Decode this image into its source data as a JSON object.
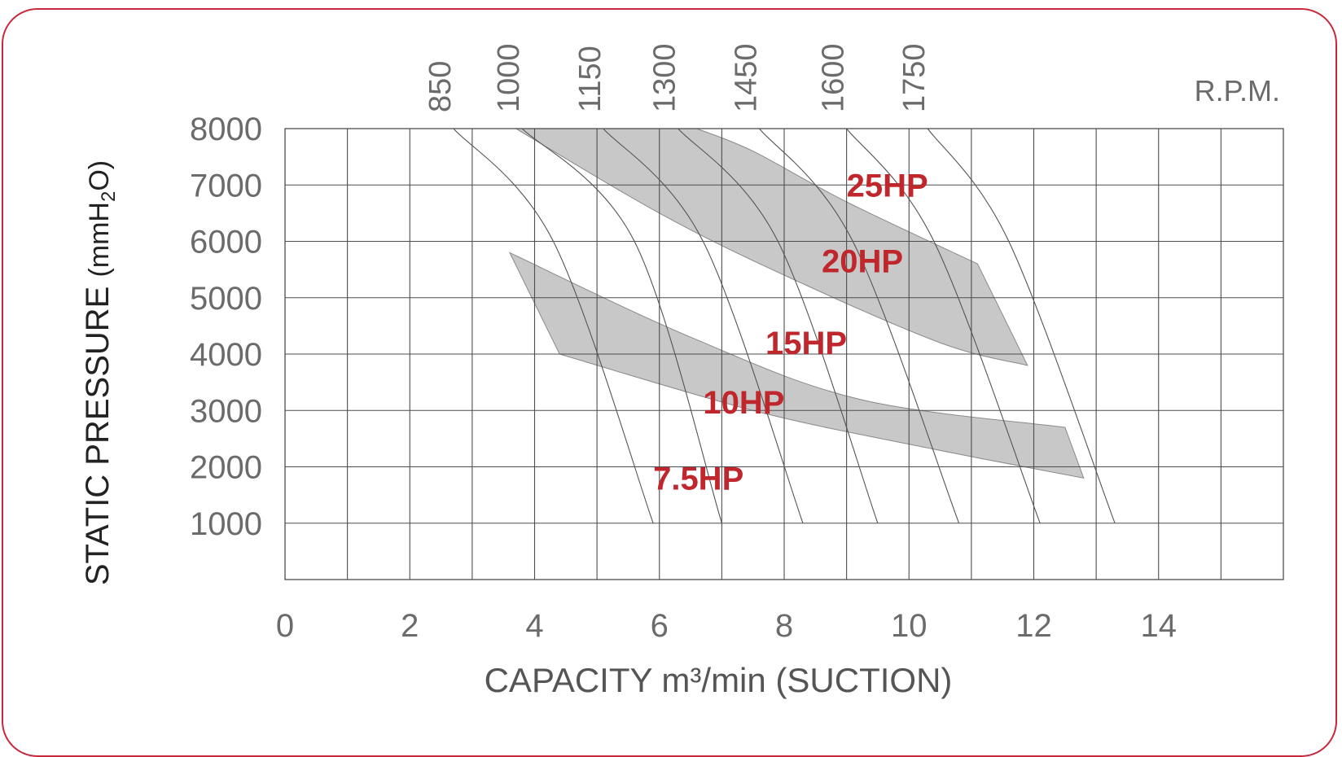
{
  "colors": {
    "frame": "#c8283c",
    "grid": "#4d4d4d",
    "band_fill": "#c8c8c8",
    "label_red": "#c0272d",
    "tick_text": "#6b6b6b",
    "title_text": "#222222"
  },
  "chart_data": {
    "type": "line",
    "title": "",
    "xlabel": "CAPACITY m³/min (SUCTION)",
    "ylabel_main": "STATIC PRESSURE ",
    "ylabel_unit": "(mmH",
    "ylabel_sub": "2",
    "ylabel_end": "O)",
    "rpm_label": "R.P.M.",
    "xlim": [
      0,
      16
    ],
    "ylim": [
      0,
      8000
    ],
    "grid": true,
    "x_ticks": [
      {
        "value": 0,
        "label": "0"
      },
      {
        "value": 2,
        "label": "2"
      },
      {
        "value": 4,
        "label": "4"
      },
      {
        "value": 6,
        "label": "6"
      },
      {
        "value": 8,
        "label": "8"
      },
      {
        "value": 10,
        "label": "10"
      },
      {
        "value": 12,
        "label": "12"
      },
      {
        "value": 14,
        "label": "14"
      }
    ],
    "y_ticks": [
      {
        "value": 1000,
        "label": "1000"
      },
      {
        "value": 2000,
        "label": "2000"
      },
      {
        "value": 3000,
        "label": "3000"
      },
      {
        "value": 4000,
        "label": "4000"
      },
      {
        "value": 5000,
        "label": "5000"
      },
      {
        "value": 6000,
        "label": "6000"
      },
      {
        "value": 7000,
        "label": "7000"
      },
      {
        "value": 8000,
        "label": "8000"
      }
    ],
    "rpm_curves": [
      {
        "name": "850",
        "points": [
          [
            2.7,
            8000
          ],
          [
            4.3,
            6000
          ],
          [
            5.9,
            1000
          ]
        ]
      },
      {
        "name": "1000",
        "points": [
          [
            3.8,
            8000
          ],
          [
            5.6,
            6000
          ],
          [
            7.0,
            1000
          ]
        ]
      },
      {
        "name": "1150",
        "points": [
          [
            5.1,
            8000
          ],
          [
            6.7,
            6000
          ],
          [
            8.3,
            1000
          ]
        ]
      },
      {
        "name": "1300",
        "points": [
          [
            6.3,
            8000
          ],
          [
            7.9,
            6000
          ],
          [
            9.5,
            1000
          ]
        ]
      },
      {
        "name": "1450",
        "points": [
          [
            7.6,
            8000
          ],
          [
            9.1,
            6000
          ],
          [
            10.8,
            1000
          ]
        ]
      },
      {
        "name": "1600",
        "points": [
          [
            9.0,
            8000
          ],
          [
            10.4,
            6000
          ],
          [
            12.1,
            1000
          ]
        ]
      },
      {
        "name": "1750",
        "points": [
          [
            10.3,
            8000
          ],
          [
            11.6,
            6000
          ],
          [
            13.3,
            1000
          ]
        ]
      }
    ],
    "hp_labels": [
      {
        "label": "25HP",
        "x": 9.0,
        "y": 7000
      },
      {
        "label": "20HP",
        "x": 8.6,
        "y": 5650
      },
      {
        "label": "15HP",
        "x": 7.7,
        "y": 4200
      },
      {
        "label": "10HP",
        "x": 6.7,
        "y": 3150
      },
      {
        "label": "7.5HP",
        "x": 5.9,
        "y": 1800
      }
    ],
    "bands": [
      {
        "name": "upper",
        "upper_edge": [
          [
            6.6,
            8000
          ],
          [
            7.5,
            7600
          ],
          [
            9.0,
            6700
          ],
          [
            11.1,
            5600
          ]
        ],
        "lower_edge": [
          [
            3.7,
            8000
          ],
          [
            6.0,
            6500
          ],
          [
            8.0,
            5400
          ],
          [
            10.5,
            4200
          ],
          [
            11.9,
            3800
          ]
        ],
        "end_edge": [
          [
            11.1,
            5600
          ],
          [
            11.9,
            3800
          ]
        ]
      },
      {
        "name": "lower",
        "upper_edge": [
          [
            3.6,
            5800
          ],
          [
            6.5,
            4300
          ],
          [
            9.2,
            3200
          ],
          [
            12.5,
            2700
          ]
        ],
        "lower_edge": [
          [
            4.4,
            4000
          ],
          [
            7.5,
            3000
          ],
          [
            10.0,
            2400
          ],
          [
            12.8,
            1800
          ]
        ],
        "start_edge": [
          [
            3.6,
            5800
          ],
          [
            4.4,
            4000
          ]
        ],
        "end_edge": [
          [
            12.5,
            2700
          ],
          [
            12.8,
            1800
          ]
        ]
      }
    ]
  }
}
